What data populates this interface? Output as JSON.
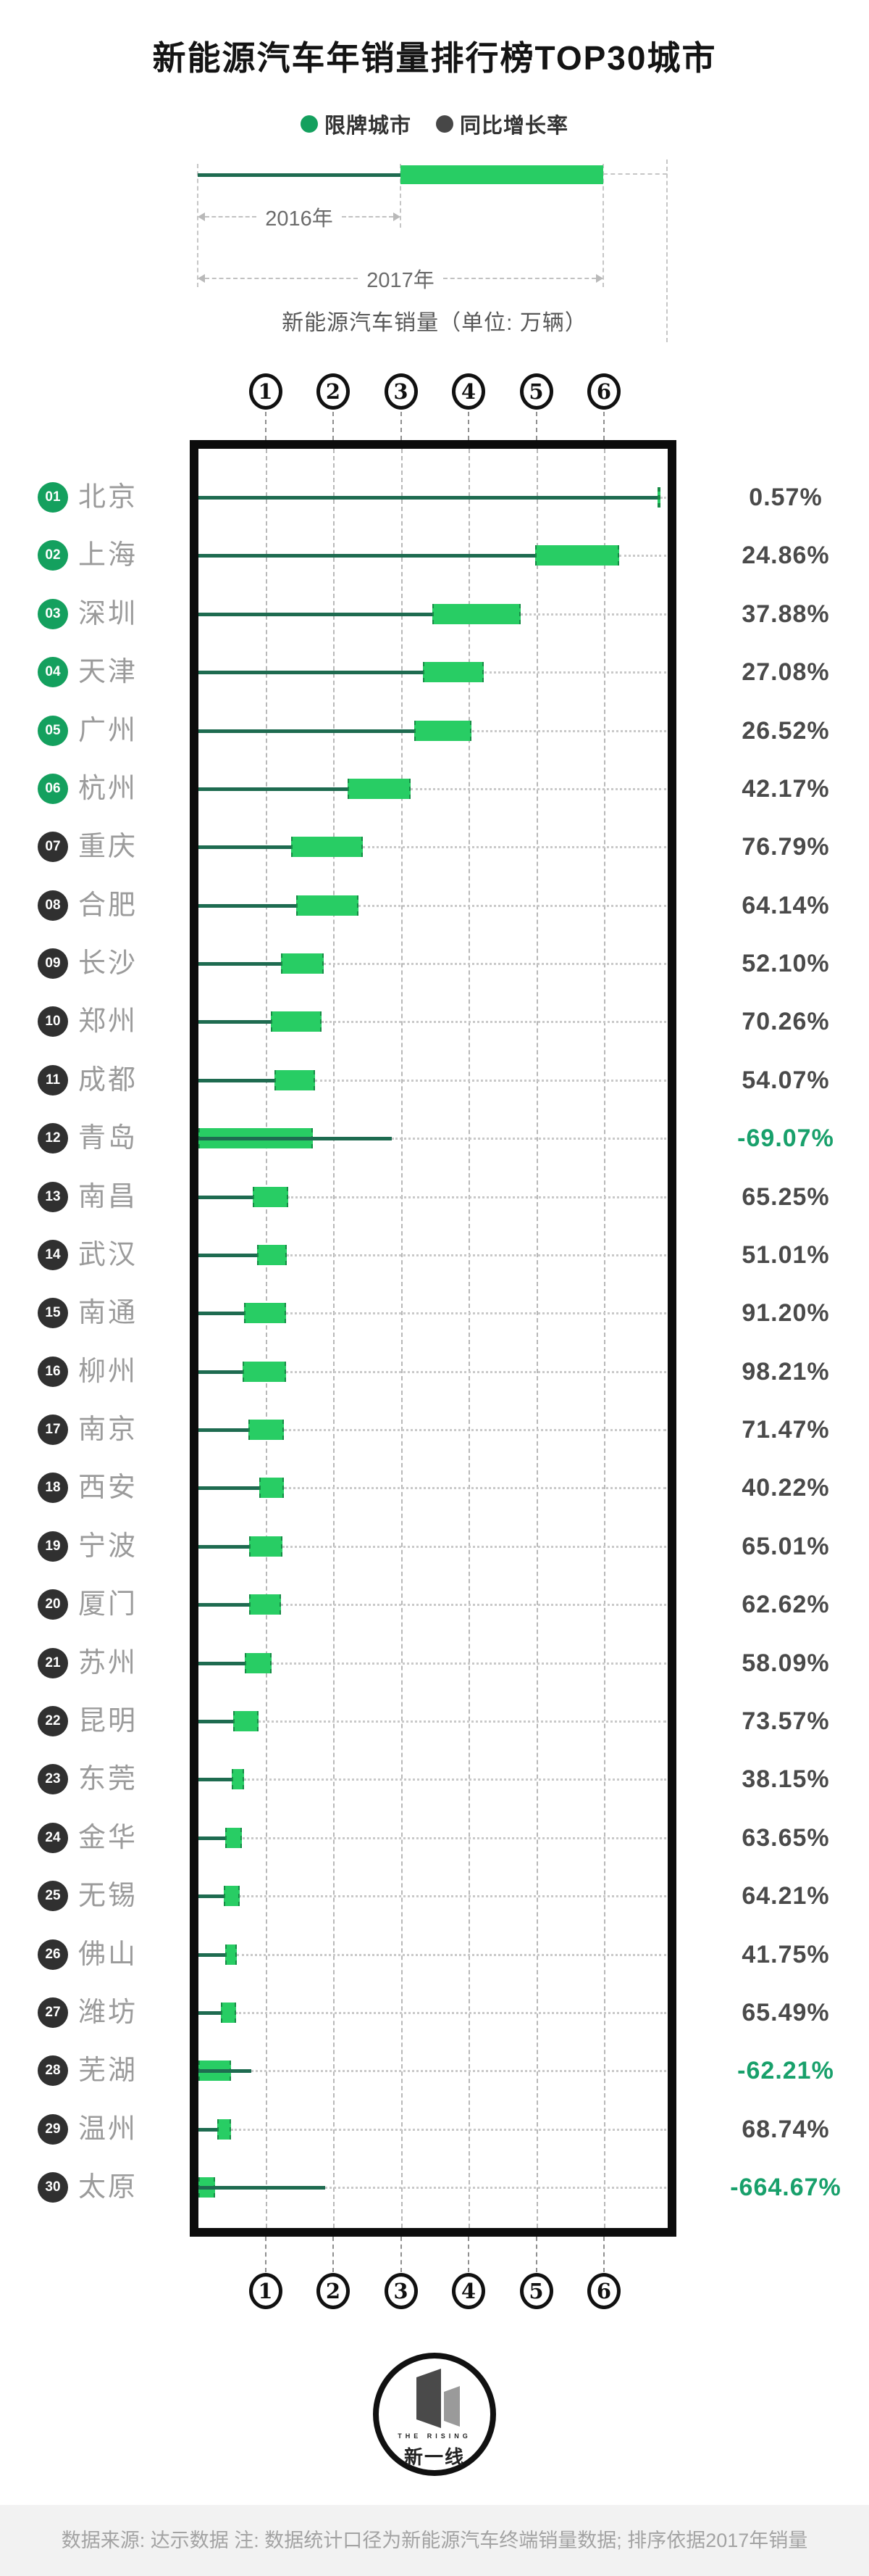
{
  "title": "新能源汽车年销量排行榜TOP30城市",
  "legend": {
    "restricted_label": "限牌城市",
    "growth_label": "同比增长率"
  },
  "diagram": {
    "year_2016": "2016年",
    "year_2017": "2017年",
    "caption": "新能源汽车销量（单位: 万辆）"
  },
  "axis": {
    "ticks": [
      1,
      2,
      3,
      4,
      5,
      6
    ]
  },
  "chart_data": {
    "type": "bar",
    "title": "新能源汽车年销量排行榜TOP30城市",
    "xlabel": "新能源汽车销量（单位: 万辆）",
    "unit": "万辆",
    "xlim": [
      0,
      6.9
    ],
    "grid": "dashed-vertical",
    "note": "细线=2016年销量, 绿色柱=2016至2017年销量变化区间, 右侧为同比增长率",
    "cities": [
      {
        "rank": "01",
        "name": "北京",
        "restricted": true,
        "sales_2016": 6.78,
        "sales_2017": 6.82,
        "growth": "0.57%",
        "negative": false
      },
      {
        "rank": "02",
        "name": "上海",
        "restricted": true,
        "sales_2016": 4.97,
        "sales_2017": 6.21,
        "growth": "24.86%",
        "negative": false
      },
      {
        "rank": "03",
        "name": "深圳",
        "restricted": true,
        "sales_2016": 3.45,
        "sales_2017": 4.76,
        "growth": "37.88%",
        "negative": false
      },
      {
        "rank": "04",
        "name": "天津",
        "restricted": true,
        "sales_2016": 3.32,
        "sales_2017": 4.22,
        "growth": "27.08%",
        "negative": false
      },
      {
        "rank": "05",
        "name": "广州",
        "restricted": true,
        "sales_2016": 3.19,
        "sales_2017": 4.04,
        "growth": "26.52%",
        "negative": false
      },
      {
        "rank": "06",
        "name": "杭州",
        "restricted": true,
        "sales_2016": 2.2,
        "sales_2017": 3.13,
        "growth": "42.17%",
        "negative": false
      },
      {
        "rank": "07",
        "name": "重庆",
        "restricted": false,
        "sales_2016": 1.37,
        "sales_2017": 2.43,
        "growth": "76.79%",
        "negative": false
      },
      {
        "rank": "08",
        "name": "合肥",
        "restricted": false,
        "sales_2016": 1.44,
        "sales_2017": 2.36,
        "growth": "64.14%",
        "negative": false
      },
      {
        "rank": "09",
        "name": "长沙",
        "restricted": false,
        "sales_2016": 1.22,
        "sales_2017": 1.85,
        "growth": "52.10%",
        "negative": false
      },
      {
        "rank": "10",
        "name": "郑州",
        "restricted": false,
        "sales_2016": 1.07,
        "sales_2017": 1.82,
        "growth": "70.26%",
        "negative": false
      },
      {
        "rank": "11",
        "name": "成都",
        "restricted": false,
        "sales_2016": 1.12,
        "sales_2017": 1.72,
        "growth": "54.07%",
        "negative": false
      },
      {
        "rank": "12",
        "name": "青岛",
        "restricted": false,
        "sales_2016": 2.86,
        "sales_2017": 1.69,
        "growth": "-69.07%",
        "negative": true
      },
      {
        "rank": "13",
        "name": "南昌",
        "restricted": false,
        "sales_2016": 0.8,
        "sales_2017": 1.32,
        "growth": "65.25%",
        "negative": false
      },
      {
        "rank": "14",
        "name": "武汉",
        "restricted": false,
        "sales_2016": 0.87,
        "sales_2017": 1.31,
        "growth": "51.01%",
        "negative": false
      },
      {
        "rank": "15",
        "name": "南通",
        "restricted": false,
        "sales_2016": 0.67,
        "sales_2017": 1.29,
        "growth": "91.20%",
        "negative": false
      },
      {
        "rank": "16",
        "name": "柳州",
        "restricted": false,
        "sales_2016": 0.65,
        "sales_2017": 1.29,
        "growth": "98.21%",
        "negative": false
      },
      {
        "rank": "17",
        "name": "南京",
        "restricted": false,
        "sales_2016": 0.74,
        "sales_2017": 1.26,
        "growth": "71.47%",
        "negative": false
      },
      {
        "rank": "18",
        "name": "西安",
        "restricted": false,
        "sales_2016": 0.9,
        "sales_2017": 1.26,
        "growth": "40.22%",
        "negative": false
      },
      {
        "rank": "19",
        "name": "宁波",
        "restricted": false,
        "sales_2016": 0.75,
        "sales_2017": 1.24,
        "growth": "65.01%",
        "negative": false
      },
      {
        "rank": "20",
        "name": "厦门",
        "restricted": false,
        "sales_2016": 0.75,
        "sales_2017": 1.22,
        "growth": "62.62%",
        "negative": false
      },
      {
        "rank": "21",
        "name": "苏州",
        "restricted": false,
        "sales_2016": 0.68,
        "sales_2017": 1.08,
        "growth": "58.09%",
        "negative": false
      },
      {
        "rank": "22",
        "name": "昆明",
        "restricted": false,
        "sales_2016": 0.51,
        "sales_2017": 0.88,
        "growth": "73.57%",
        "negative": false
      },
      {
        "rank": "23",
        "name": "东莞",
        "restricted": false,
        "sales_2016": 0.49,
        "sales_2017": 0.67,
        "growth": "38.15%",
        "negative": false
      },
      {
        "rank": "24",
        "name": "金华",
        "restricted": false,
        "sales_2016": 0.4,
        "sales_2017": 0.65,
        "growth": "63.65%",
        "negative": false
      },
      {
        "rank": "25",
        "name": "无锡",
        "restricted": false,
        "sales_2016": 0.37,
        "sales_2017": 0.6,
        "growth": "64.21%",
        "negative": false
      },
      {
        "rank": "26",
        "name": "佛山",
        "restricted": false,
        "sales_2016": 0.4,
        "sales_2017": 0.57,
        "growth": "41.75%",
        "negative": false
      },
      {
        "rank": "27",
        "name": "潍坊",
        "restricted": false,
        "sales_2016": 0.33,
        "sales_2017": 0.55,
        "growth": "65.49%",
        "negative": false
      },
      {
        "rank": "28",
        "name": "芜湖",
        "restricted": false,
        "sales_2016": 0.78,
        "sales_2017": 0.48,
        "growth": "-62.21%",
        "negative": true
      },
      {
        "rank": "29",
        "name": "温州",
        "restricted": false,
        "sales_2016": 0.28,
        "sales_2017": 0.48,
        "growth": "68.74%",
        "negative": false
      },
      {
        "rank": "30",
        "name": "太原",
        "restricted": false,
        "sales_2016": 1.87,
        "sales_2017": 0.25,
        "growth": "-664.67%",
        "negative": true
      }
    ]
  },
  "logo": {
    "text_en": "THE RISING",
    "text_cn": "新一线"
  },
  "footer": {
    "text": "数据来源: 达示数据  注: 数据统计口径为新能源汽车终端销量数据; 排序依据2017年销量"
  },
  "colors": {
    "bar_green": "#28cd64",
    "line_teal": "#1e6b50",
    "badge_green": "#14a05e",
    "pct_green": "#18a06b",
    "pct_dark": "#4a4a4a",
    "frame_black": "#0c0c0c",
    "city_gray": "#9b9b9b"
  }
}
